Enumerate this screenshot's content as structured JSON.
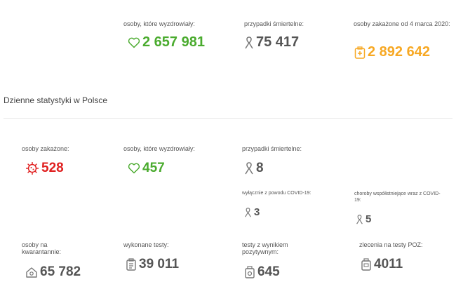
{
  "total": {
    "recovered_label": "osoby, które wyzdrowiały:",
    "recovered_value": "2 657 981",
    "deaths_label": "przypadki śmiertelne:",
    "deaths_value": "75 417",
    "infected_label": "osoby zakażone od 4 marca 2020:",
    "infected_value": "2 892 642"
  },
  "daily": {
    "section_title": "Dzienne statystyki w Polsce",
    "infected_label": "osoby zakażone:",
    "infected_value": "528",
    "recovered_label": "osoby, które wyzdrowiały:",
    "recovered_value": "457",
    "deaths_label": "przypadki śmiertelne:",
    "deaths_value": "8",
    "covid_only_label": "wyłącznie z powodu COVID-19:",
    "covid_only_value": "3",
    "comorbid_label": "choroby współistniejące wraz z COVID-19:",
    "comorbid_value": "5",
    "quarantine_label": "osoby na kwarantannie:",
    "quarantine_value": "65 782",
    "tests_label": "wykonane testy:",
    "tests_value": "39 011",
    "positive_label": "testy z wynikiem pozytywnym:",
    "positive_value": "645",
    "poz_label": "zlecenia na testy POZ:",
    "poz_value": "4011"
  },
  "colors": {
    "recovered": "#4aab2e",
    "infected_total": "#f7a823",
    "infected_daily": "#e02020",
    "neutral": "#555555"
  },
  "icons": {
    "recovered": "heart-icon",
    "deaths": "ribbon-icon",
    "infected_total": "medical-kit-icon",
    "infected_daily": "virus-icon",
    "quarantine": "house-icon",
    "tests": "clipboard-icon",
    "positive": "test-tube-icon",
    "poz": "lab-kit-icon"
  }
}
